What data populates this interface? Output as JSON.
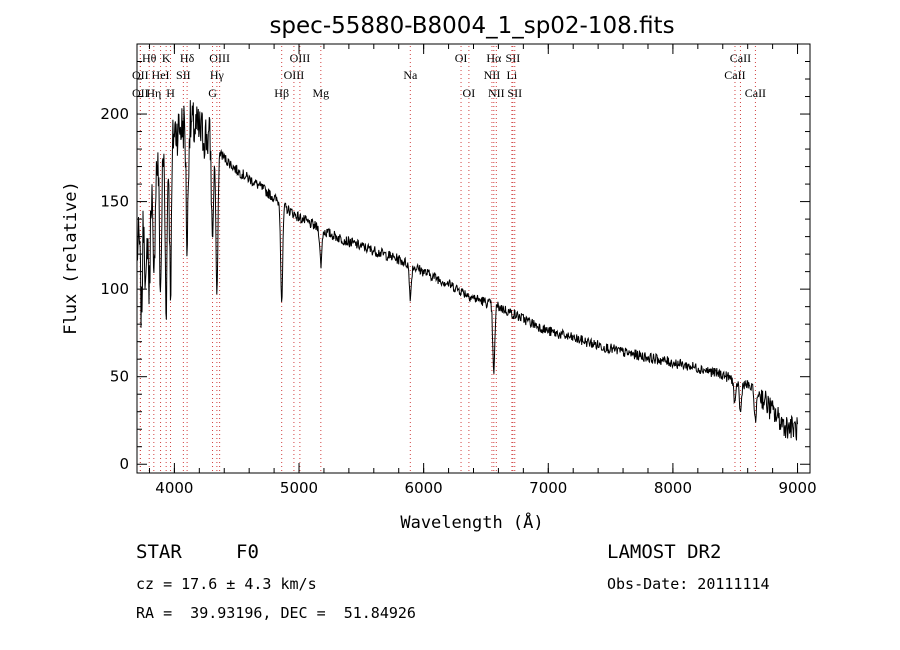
{
  "chart_data": {
    "type": "line",
    "title": "spec-55880-B8004_1_sp02-108.fits",
    "xlabel": "Wavelength (Å)",
    "ylabel": "Flux (relative)",
    "xlim": [
      3700,
      9100
    ],
    "ylim": [
      -5,
      240
    ],
    "xticks": [
      4000,
      5000,
      6000,
      7000,
      8000,
      9000
    ],
    "yticks": [
      0,
      50,
      100,
      150,
      200
    ],
    "grid": false,
    "series": [
      {
        "name": "spectrum",
        "continuum": [
          [
            3700,
            120
          ],
          [
            3750,
            150
          ],
          [
            3800,
            165
          ],
          [
            3850,
            170
          ],
          [
            3900,
            175
          ],
          [
            3950,
            185
          ],
          [
            4000,
            190
          ],
          [
            4100,
            195
          ],
          [
            4200,
            190
          ],
          [
            4300,
            185
          ],
          [
            4400,
            175
          ],
          [
            4500,
            168
          ],
          [
            4600,
            163
          ],
          [
            4700,
            158
          ],
          [
            4800,
            152
          ],
          [
            4900,
            146
          ],
          [
            5000,
            141
          ],
          [
            5200,
            133
          ],
          [
            5400,
            127
          ],
          [
            5600,
            122
          ],
          [
            5800,
            117
          ],
          [
            6000,
            110
          ],
          [
            6200,
            103
          ],
          [
            6400,
            95
          ],
          [
            6600,
            90
          ],
          [
            6800,
            83
          ],
          [
            7000,
            76
          ],
          [
            7200,
            72
          ],
          [
            7400,
            68
          ],
          [
            7600,
            64
          ],
          [
            7800,
            61
          ],
          [
            8000,
            58
          ],
          [
            8200,
            55
          ],
          [
            8400,
            51
          ],
          [
            8600,
            45
          ],
          [
            8700,
            40
          ],
          [
            8800,
            30
          ],
          [
            8900,
            22
          ],
          [
            9000,
            20
          ]
        ],
        "absorption": [
          {
            "x": 3736,
            "depth": 55
          },
          {
            "x": 3771,
            "depth": 60
          },
          {
            "x": 3798,
            "depth": 65
          },
          {
            "x": 3835,
            "depth": 70
          },
          {
            "x": 3889,
            "depth": 75
          },
          {
            "x": 3934,
            "depth": 90
          },
          {
            "x": 3969,
            "depth": 85
          },
          {
            "x": 4102,
            "depth": 70
          },
          {
            "x": 4306,
            "depth": 55
          },
          {
            "x": 4341,
            "depth": 85
          },
          {
            "x": 4861,
            "depth": 55
          },
          {
            "x": 5175,
            "depth": 20
          },
          {
            "x": 5893,
            "depth": 18
          },
          {
            "x": 6563,
            "depth": 40
          },
          {
            "x": 8498,
            "depth": 15
          },
          {
            "x": 8542,
            "depth": 18
          },
          {
            "x": 8662,
            "depth": 18
          }
        ]
      }
    ],
    "lines": [
      {
        "label": "Hθ",
        "x": 3798,
        "row": 0
      },
      {
        "label": "OII",
        "x": 3727,
        "row": 1
      },
      {
        "label": "OII",
        "x": 3727,
        "row": 2
      },
      {
        "label": "K",
        "x": 3934,
        "row": 0
      },
      {
        "label": "HeI",
        "x": 3889,
        "row": 1
      },
      {
        "label": "Hη",
        "x": 3835,
        "row": 2
      },
      {
        "label": "Hδ",
        "x": 4102,
        "row": 0
      },
      {
        "label": "SII",
        "x": 4072,
        "row": 1
      },
      {
        "label": "H",
        "x": 3969,
        "row": 2
      },
      {
        "label": "OIII",
        "x": 4363,
        "row": 0
      },
      {
        "label": "Hγ",
        "x": 4341,
        "row": 1
      },
      {
        "label": "G",
        "x": 4306,
        "row": 2
      },
      {
        "label": "OIII",
        "x": 5007,
        "row": 0
      },
      {
        "label": "OIII",
        "x": 4959,
        "row": 1
      },
      {
        "label": "Hβ",
        "x": 4861,
        "row": 2
      },
      {
        "label": "Mg",
        "x": 5175,
        "row": 2
      },
      {
        "label": "Na",
        "x": 5893,
        "row": 1
      },
      {
        "label": "OI",
        "x": 6300,
        "row": 0
      },
      {
        "label": "OI",
        "x": 6363,
        "row": 2
      },
      {
        "label": "Hα",
        "x": 6563,
        "row": 0
      },
      {
        "label": "SII",
        "x": 6716,
        "row": 0
      },
      {
        "label": "NII",
        "x": 6548,
        "row": 1
      },
      {
        "label": "Li",
        "x": 6708,
        "row": 1
      },
      {
        "label": "NII",
        "x": 6583,
        "row": 2
      },
      {
        "label": "SII",
        "x": 6731,
        "row": 2
      },
      {
        "label": "CaII",
        "x": 8542,
        "row": 0
      },
      {
        "label": "CaII",
        "x": 8498,
        "row": 1
      },
      {
        "label": "CaII",
        "x": 8662,
        "row": 2
      }
    ]
  },
  "info": {
    "object_class": "STAR",
    "subclass": "F0",
    "survey": "LAMOST DR2",
    "redshift": "cz = 17.6 ± 4.3 km/s",
    "obs_date": "Obs-Date: 20111114",
    "coords": "RA =  39.93196, DEC =  51.84926"
  }
}
